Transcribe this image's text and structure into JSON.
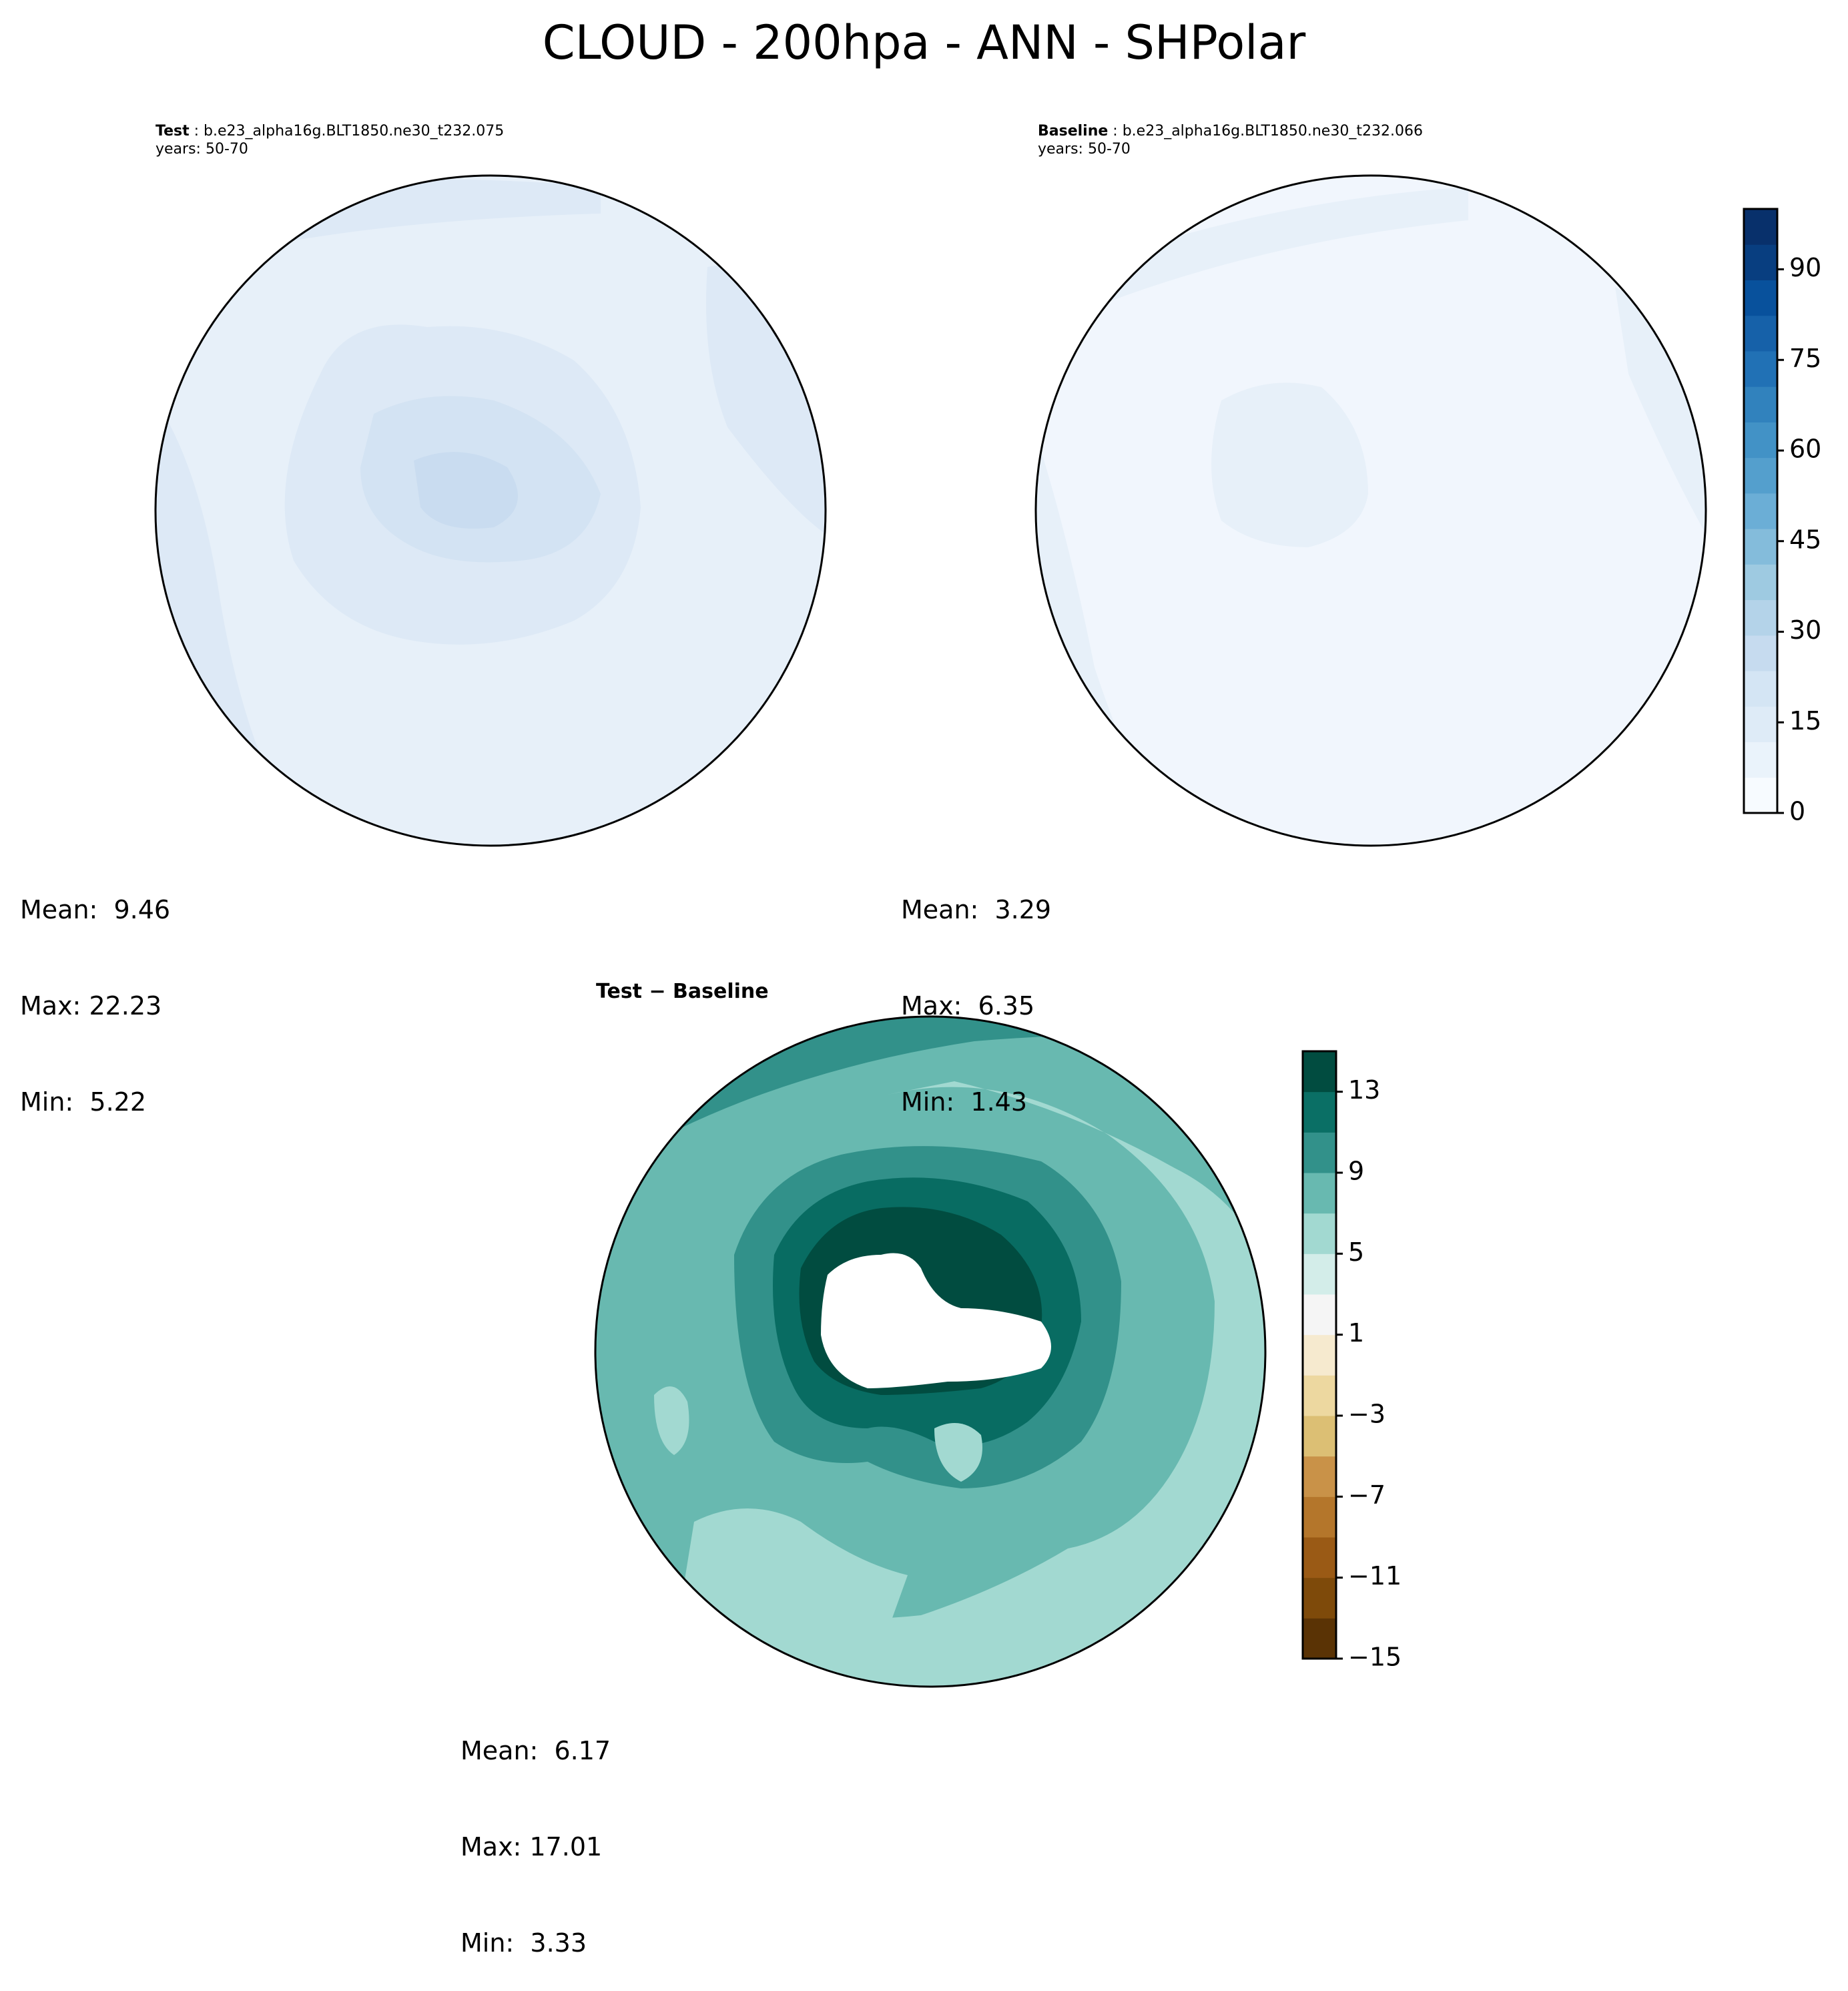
{
  "figure": {
    "title": "CLOUD - 200hpa - ANN - SHPolar"
  },
  "panels": {
    "test": {
      "label": "Test",
      "case": "b.e23_alpha16g.BLT1850.ne30_t232.075",
      "years": "years: 50-70",
      "stats": {
        "mean": "Mean:  9.46",
        "max": "Max: 22.23",
        "min": "Min:  5.22"
      },
      "fill_colors": [
        "#e7f0f9",
        "#dde9f6",
        "#d3e3f3",
        "#c9dcf0"
      ]
    },
    "baseline": {
      "label": "Baseline",
      "case": "b.e23_alpha16g.BLT1850.ne30_t232.066",
      "years": "years: 50-70",
      "stats": {
        "mean": "Mean:  3.29",
        "max": "Max:  6.35",
        "min": "Min:  1.43"
      },
      "fill_colors": [
        "#f1f6fd",
        "#e7f0f9"
      ]
    },
    "difference": {
      "label": "Test − Baseline",
      "stats": {
        "mean": "Mean:  6.17",
        "max": "Max: 17.01",
        "min": "Min:  3.33"
      },
      "fill_colors": [
        "#68b9b0",
        "#a2d9d1",
        "#32918a",
        "#086c62",
        "#014c40",
        "#ffffff"
      ]
    }
  },
  "colorbars": {
    "main": {
      "ticks": [
        "0",
        "15",
        "30",
        "45",
        "60",
        "75",
        "90"
      ],
      "colors": [
        "#f7fbff",
        "#eaf3fb",
        "#deebf7",
        "#d4e5f4",
        "#c6dbef",
        "#b4d3e9",
        "#9ecae1",
        "#84bcdb",
        "#6baed6",
        "#549fcd",
        "#4292c6",
        "#3182bd",
        "#2171b5",
        "#1661a9",
        "#08519c",
        "#083e80",
        "#08306b"
      ]
    },
    "diff": {
      "ticks": [
        "13",
        "9",
        "5",
        "1",
        "−3",
        "−7",
        "−11",
        "−15"
      ],
      "colors": [
        "#5a3305",
        "#7e4a0a",
        "#9a5a15",
        "#b4762b",
        "#c99248",
        "#dcbf74",
        "#edd8a0",
        "#f6eacf",
        "#f5f5f5",
        "#d3ede9",
        "#a2d9d1",
        "#68b9b0",
        "#32918a",
        "#0a6f65",
        "#014c40"
      ]
    }
  }
}
